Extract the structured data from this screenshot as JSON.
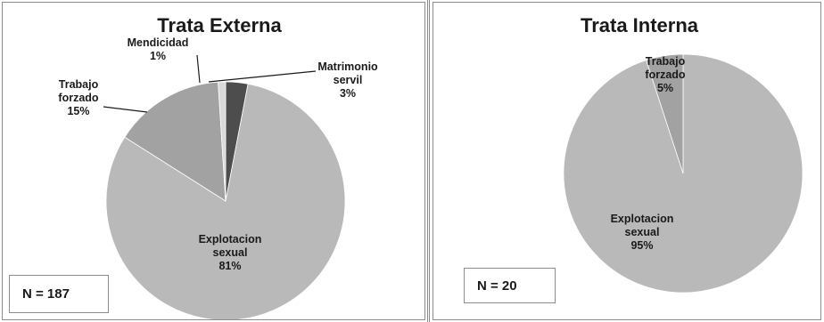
{
  "chart_data": [
    {
      "type": "pie",
      "title": "Trata Externa",
      "note": "N = 187",
      "slices": [
        {
          "label_lines": [
            "Matrimonio",
            "servil"
          ],
          "pct_text": "3%",
          "value": 3,
          "color": "#4d4d4d"
        },
        {
          "label_lines": [
            "Explotacion",
            "sexual"
          ],
          "pct_text": "81%",
          "value": 81,
          "color": "#b9b9b9"
        },
        {
          "label_lines": [
            "Trabajo",
            "forzado"
          ],
          "pct_text": "15%",
          "value": 15,
          "color": "#a2a2a2"
        },
        {
          "label_lines": [
            "Mendicidad"
          ],
          "pct_text": "1%",
          "value": 1,
          "color": "#d9d9d9"
        }
      ]
    },
    {
      "type": "pie",
      "title": "Trata Interna",
      "note": "N = 20",
      "slices": [
        {
          "label_lines": [
            "Explotacion",
            "sexual"
          ],
          "pct_text": "95%",
          "value": 95,
          "color": "#b9b9b9"
        },
        {
          "label_lines": [
            "Trabajo",
            "forzado"
          ],
          "pct_text": "5%",
          "value": 5,
          "color": "#a2a2a2"
        }
      ]
    }
  ]
}
